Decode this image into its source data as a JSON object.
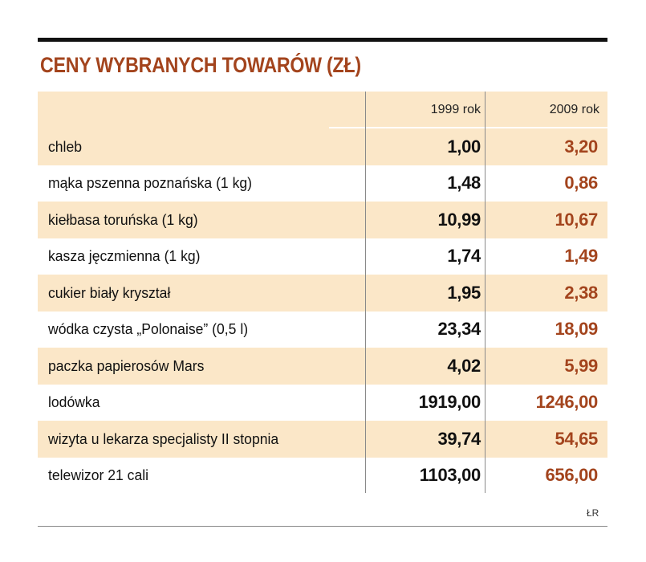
{
  "title": "CENY WYBRANYCH TOWARÓW (ZŁ)",
  "source": "ŁR",
  "colors": {
    "accent": "#a3441d",
    "row_shade": "#fbe7c8",
    "text": "#111111"
  },
  "chart_data": {
    "type": "table",
    "title": "CENY WYBRANYCH TOWARÓW (ZŁ)",
    "columns": [
      "",
      "1999 rok",
      "2009 rok"
    ],
    "rows": [
      {
        "label": "chleb",
        "v1999": "1,00",
        "v2009": "3,20"
      },
      {
        "label": "mąka pszenna poznańska (1 kg)",
        "v1999": "1,48",
        "v2009": "0,86"
      },
      {
        "label": "kiełbasa toruńska (1 kg)",
        "v1999": "10,99",
        "v2009": "10,67"
      },
      {
        "label": "kasza jęczmienna (1 kg)",
        "v1999": "1,74",
        "v2009": "1,49"
      },
      {
        "label": "cukier biały kryształ",
        "v1999": "1,95",
        "v2009": "2,38"
      },
      {
        "label": "wódka czysta „Polonaise” (0,5 l)",
        "v1999": "23,34",
        "v2009": "18,09"
      },
      {
        "label": "paczka papierosów Mars",
        "v1999": "4,02",
        "v2009": "5,99"
      },
      {
        "label": "lodówka",
        "v1999": "1919,00",
        "v2009": "1246,00"
      },
      {
        "label": "wizyta u lekarza specjalisty II stopnia",
        "v1999": "39,74",
        "v2009": "54,65"
      },
      {
        "label": "telewizor 21 cali",
        "v1999": "1103,00",
        "v2009": "656,00"
      }
    ]
  }
}
